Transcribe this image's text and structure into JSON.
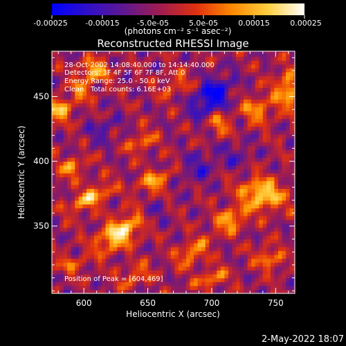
{
  "colorbar": {
    "stops": [
      "#0000ff",
      "#3010c8",
      "#601890",
      "#a01c50",
      "#e03010",
      "#ff8a00",
      "#ffd040",
      "#ffffff"
    ],
    "tick_labels": [
      "-0.00025",
      "-0.00015",
      "-5.0e-05",
      "5.0e-05",
      "0.00015",
      "0.00025"
    ],
    "units_label": "(photons cm⁻² s⁻¹ asec⁻²)"
  },
  "chart_data": {
    "type": "heatmap",
    "title": "Reconstructed RHESSI Image",
    "xlabel": "Heliocentric X (arcsec)",
    "ylabel": "Heliocentric Y (arcsec)",
    "xlim": [
      575,
      765
    ],
    "ylim": [
      298,
      485
    ],
    "x_ticks": [
      600,
      650,
      700,
      750
    ],
    "y_ticks": [
      350,
      400,
      450
    ],
    "x_tick_labels": [
      "600",
      "650",
      "700",
      "750"
    ],
    "y_tick_labels": [
      "350",
      "400",
      "450"
    ],
    "color_range": [
      -0.00025,
      0.00025
    ],
    "peak_position": [
      604,
      469
    ],
    "info_lines": [
      "28-Oct-2002 14:08:40.000 to 14:14:40.000",
      "Detectors: 3F 4F 5F 6F 7F 8F, Att 0",
      "Energy Range: 25.0 - 50.0 keV",
      "Clean   Total counts: 6.16E+03"
    ],
    "peak_label": "Position of Peak = [604,469]"
  },
  "timestamp": "2-May-2022 18:07"
}
